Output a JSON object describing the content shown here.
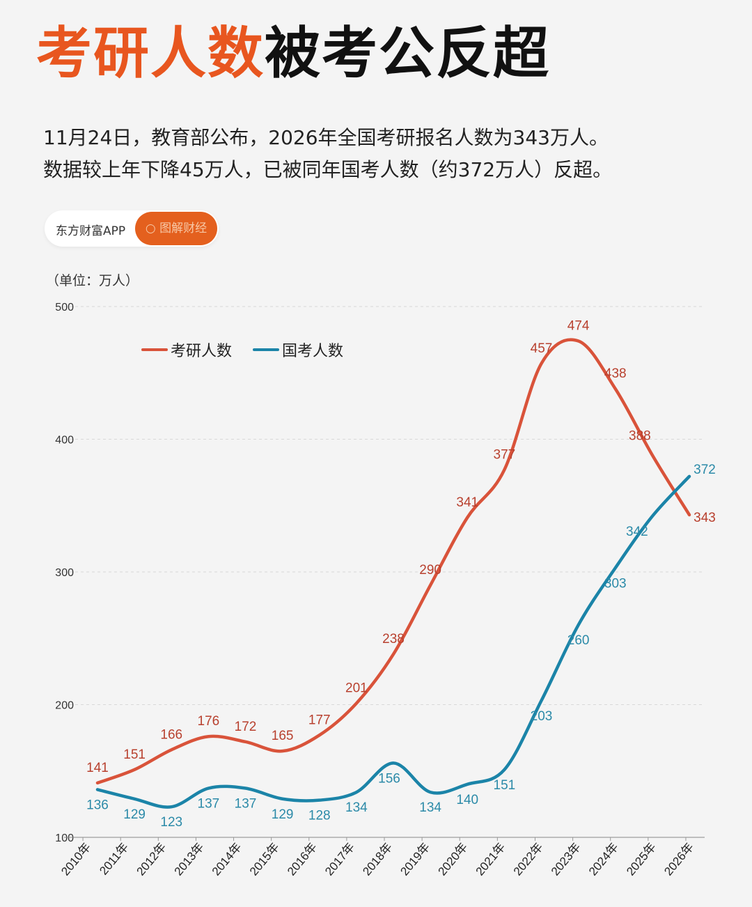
{
  "title": {
    "highlight": "考研人数",
    "rest": "被考公反超"
  },
  "subtitle": [
    "11月24日，教育部公布，2026年全国考研报名人数为343万人。",
    "数据较上年下降45万人，已被同年国考人数（约372万人）反超。"
  ],
  "brand": {
    "name": "东方财富APP",
    "button": "图解财经",
    "button_icon": "search-icon"
  },
  "colors": {
    "title_accent": "#e8561f",
    "kaoyan": "#d9533a",
    "guokao": "#1b84a8"
  },
  "chart_data": {
    "type": "line",
    "unit_label": "（单位：万人）",
    "categories": [
      "2010年",
      "2011年",
      "2012年",
      "2013年",
      "2014年",
      "2015年",
      "2016年",
      "2017年",
      "2018年",
      "2019年",
      "2020年",
      "2021年",
      "2022年",
      "2023年",
      "2024年",
      "2025年",
      "2026年"
    ],
    "series": [
      {
        "name": "考研人数",
        "color": "#d9533a",
        "values": [
          141,
          151,
          166,
          176,
          172,
          165,
          177,
          201,
          238,
          290,
          341,
          377,
          457,
          474,
          438,
          388,
          343
        ]
      },
      {
        "name": "国考人数",
        "color": "#1b84a8",
        "values": [
          136,
          129,
          123,
          137,
          137,
          129,
          128,
          134,
          156,
          134,
          140,
          151,
          203,
          260,
          303,
          342,
          372
        ]
      }
    ],
    "ylim": [
      100,
      500
    ],
    "yticks": [
      100,
      200,
      300,
      400,
      500
    ],
    "grid": true,
    "legend": "top-left"
  }
}
